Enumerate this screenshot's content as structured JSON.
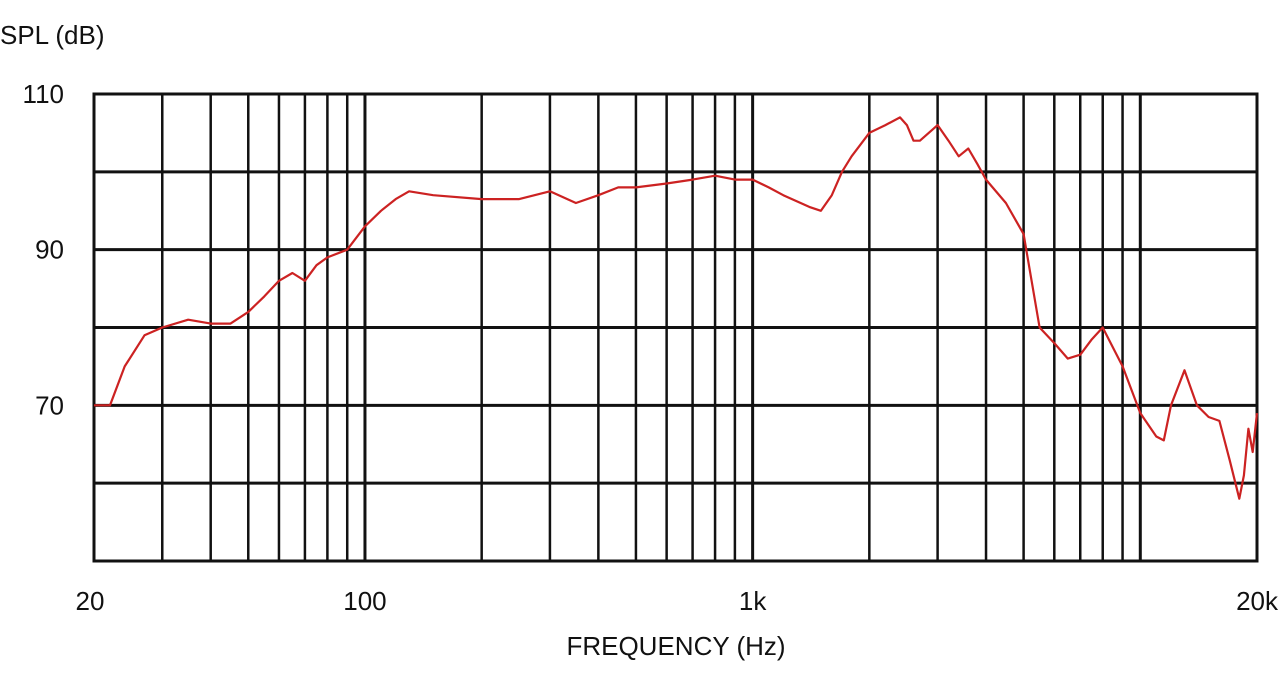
{
  "chart_data": {
    "type": "line",
    "title": "",
    "xlabel": "FREQUENCY (Hz)",
    "ylabel": "SPL (dB)",
    "x_scale": "log",
    "xlim": [
      20,
      20000
    ],
    "ylim": [
      50,
      110
    ],
    "grid": true,
    "legend": "none",
    "x_ticks": [
      {
        "value": 20,
        "label": "20"
      },
      {
        "value": 100,
        "label": "100"
      },
      {
        "value": 1000,
        "label": "1k"
      },
      {
        "value": 20000,
        "label": "20k"
      }
    ],
    "y_ticks": [
      {
        "value": 110,
        "label": "110"
      },
      {
        "value": 90,
        "label": "90"
      },
      {
        "value": 70,
        "label": "70"
      }
    ],
    "series": [
      {
        "color": "#cc2222",
        "x": [
          20,
          22,
          24,
          27,
          30,
          35,
          40,
          45,
          50,
          55,
          60,
          65,
          70,
          75,
          80,
          90,
          100,
          110,
          120,
          130,
          150,
          200,
          250,
          300,
          350,
          400,
          450,
          500,
          600,
          700,
          800,
          900,
          1000,
          1100,
          1200,
          1400,
          1500,
          1600,
          1700,
          1800,
          2000,
          2200,
          2400,
          2500,
          2600,
          2700,
          3000,
          3200,
          3400,
          3600,
          3800,
          4000,
          4500,
          5000,
          5500,
          6000,
          6500,
          7000,
          7500,
          8000,
          9000,
          10000,
          11000,
          11500,
          12000,
          13000,
          14000,
          15000,
          16000,
          17000,
          18000,
          18500,
          19000,
          19500,
          20000
        ],
        "y": [
          70,
          70,
          75,
          79,
          80,
          81,
          80.5,
          80.5,
          82,
          84,
          86,
          87,
          86,
          88,
          89,
          90,
          93,
          95,
          96.5,
          97.5,
          97,
          96.5,
          96.5,
          97.5,
          96,
          97,
          98,
          98,
          98.5,
          99,
          99.5,
          99,
          99,
          98,
          97,
          95.5,
          95,
          97,
          100,
          102,
          105,
          106,
          107,
          106,
          104,
          104,
          106,
          104,
          102,
          103,
          101,
          99,
          96,
          92,
          80,
          78,
          76,
          76.5,
          78.5,
          80,
          75,
          69,
          66,
          65.5,
          70,
          74.5,
          70,
          68.5,
          68,
          63,
          58,
          61,
          67,
          64,
          69
        ]
      }
    ]
  }
}
